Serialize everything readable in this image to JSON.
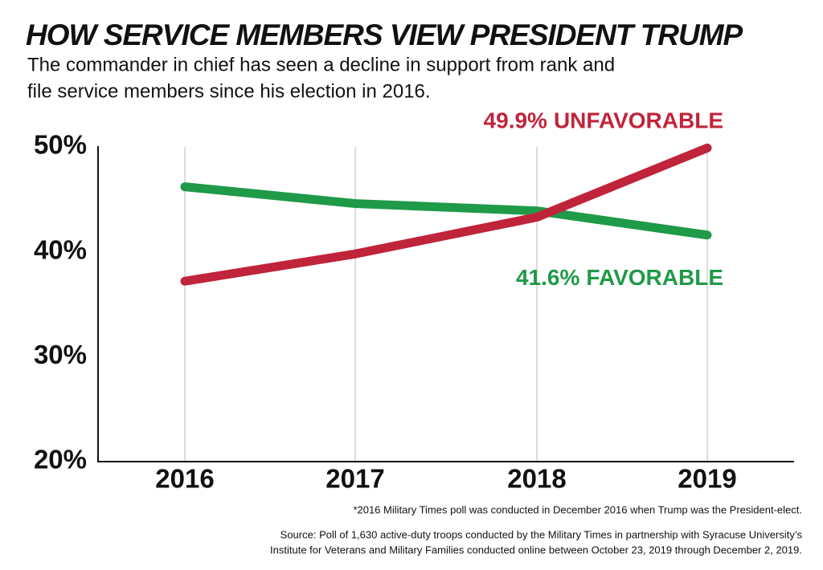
{
  "chart_data": {
    "type": "line",
    "title": "HOW SERVICE MEMBERS VIEW PRESIDENT TRUMP",
    "subtitle": [
      "The commander in chief has seen a decline in support from rank and",
      "file service members since his election in 2016."
    ],
    "categories": [
      "2016",
      "2017",
      "2018",
      "2019"
    ],
    "series": [
      {
        "name": "FAVORABLE",
        "color": "#1f9a48",
        "values": [
          46.2,
          44.6,
          43.9,
          41.6
        ],
        "value_labels": [
          null,
          null,
          null,
          "41.6%"
        ]
      },
      {
        "name": "UNFAVORABLE",
        "color": "#c0243a",
        "values": [
          37.2,
          39.8,
          43.3,
          49.9
        ],
        "value_labels": [
          null,
          null,
          null,
          "49.9%"
        ]
      }
    ],
    "ylim": [
      20,
      50
    ],
    "yticks": [
      {
        "value": 20,
        "label": "20%"
      },
      {
        "value": 30,
        "label": "30%"
      },
      {
        "value": 40,
        "label": "40%"
      },
      {
        "value": 50,
        "label": "50%"
      }
    ],
    "grid": true,
    "notes": [
      "*2016 Military Times poll was conducted in December 2016 when Trump was the President-elect.",
      "Source: Poll of 1,630 active-duty troops conducted by the Military Times in partnership with Syracuse University’s",
      "Institute for Veterans and Military Families conducted online between October 23, 2019 through December 2, 2019."
    ]
  }
}
